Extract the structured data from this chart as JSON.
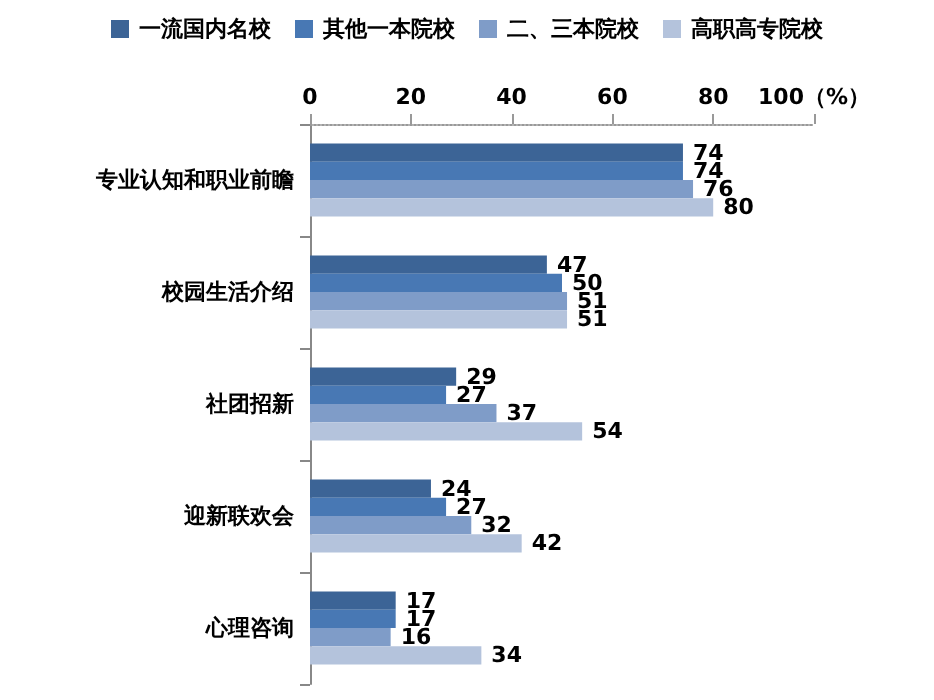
{
  "chart_data": {
    "type": "bar",
    "orientation": "horizontal",
    "categories": [
      "专业认知和职业前瞻",
      "校园生活介绍",
      "社团招新",
      "迎新联欢会",
      "心理咨询"
    ],
    "series": [
      {
        "name": "一流国内名校",
        "color": "#3c6496",
        "values": [
          74,
          47,
          29,
          24,
          17
        ]
      },
      {
        "name": "其他一本院校",
        "color": "#4878b4",
        "values": [
          74,
          50,
          27,
          27,
          17
        ]
      },
      {
        "name": "二、三本院校",
        "color": "#7f9cc8",
        "values": [
          76,
          51,
          37,
          32,
          16
        ]
      },
      {
        "name": "高职高专院校",
        "color": "#b4c3dc",
        "values": [
          80,
          51,
          54,
          42,
          34
        ]
      }
    ],
    "xlim": [
      0,
      100
    ],
    "xticks": [
      0,
      20,
      40,
      60,
      80,
      {
        "value": 100,
        "label": "100（%）"
      }
    ],
    "data_labels": true,
    "legend": "top",
    "grid": false
  }
}
